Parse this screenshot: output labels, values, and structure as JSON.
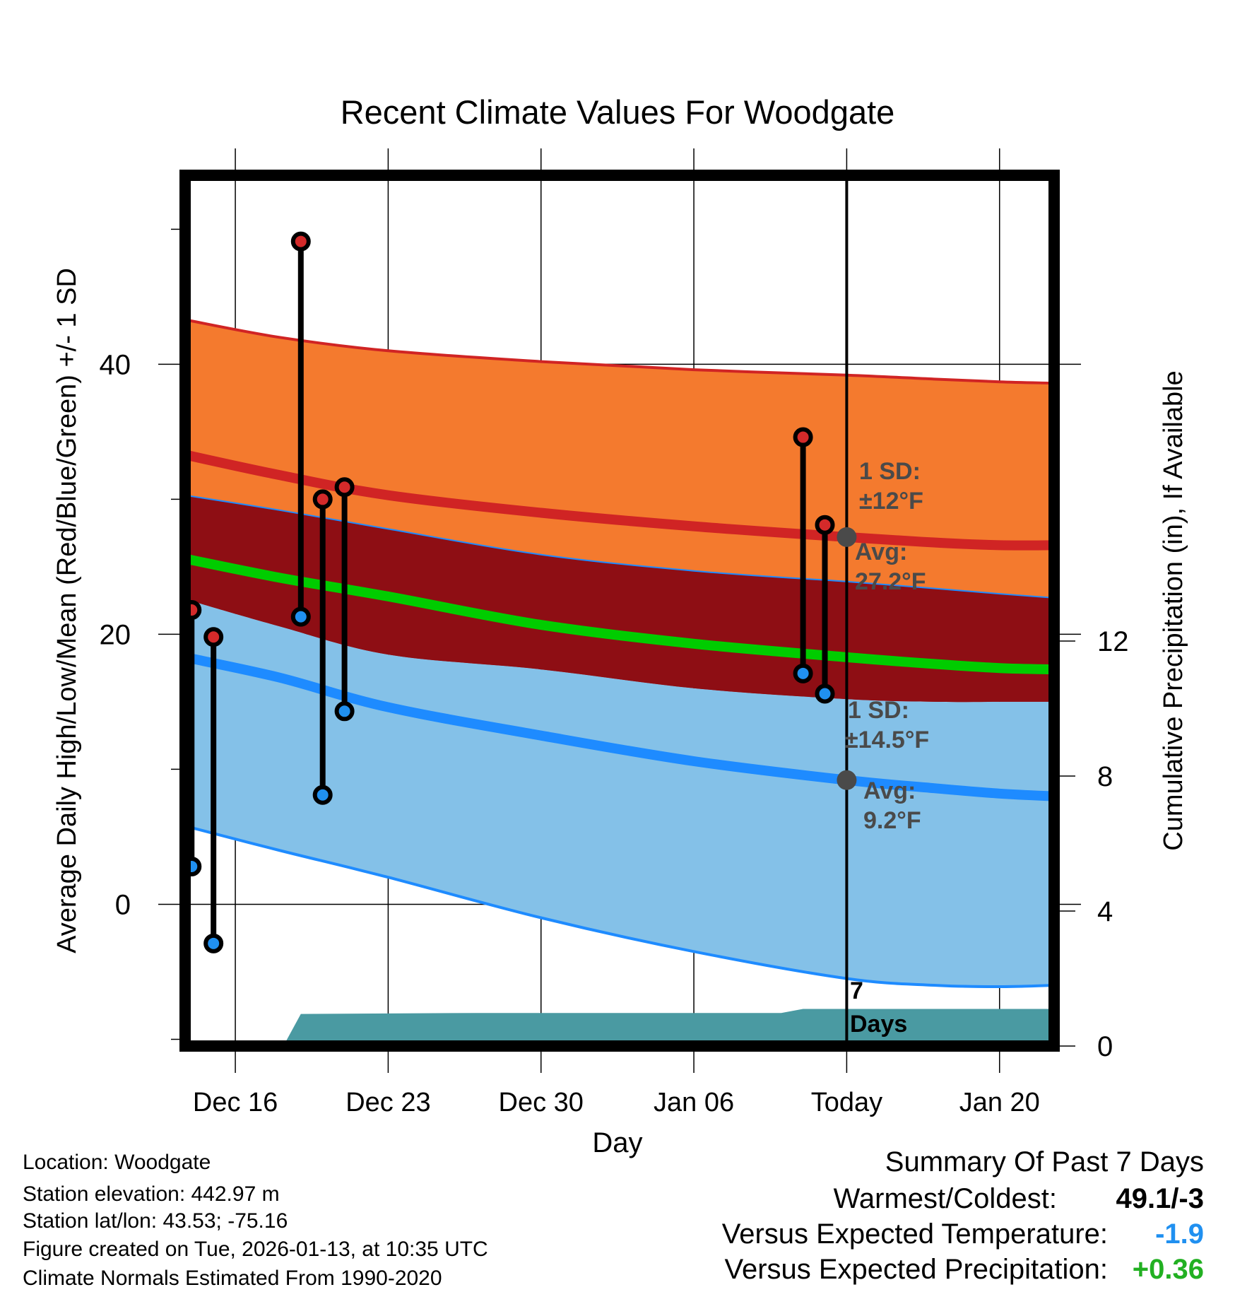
{
  "chart_data": {
    "type": "line",
    "title": "Recent Climate Values For Woodgate",
    "xlabel": "Day",
    "ylabel_left": "Average Daily High/Low/Mean (Red/Blue/Green) +/- 1 SD",
    "ylabel_right": "Cumulative Precipitation (in), If Available",
    "x_range_days": [
      -30.3,
      9.5
    ],
    "ylim_left": [
      -10.5,
      54
    ],
    "ylim_right": [
      0,
      25.8
    ],
    "x_ticks": [
      {
        "day": -28,
        "label": "Dec 16"
      },
      {
        "day": -21,
        "label": "Dec 23"
      },
      {
        "day": -14,
        "label": "Dec 30"
      },
      {
        "day": -7,
        "label": "Jan 06"
      },
      {
        "day": 0,
        "label": "Today"
      },
      {
        "day": 7,
        "label": "Jan 20"
      }
    ],
    "y_ticks_left": [
      {
        "value": 0,
        "label": "0"
      },
      {
        "value": 20,
        "label": "20"
      },
      {
        "value": 40,
        "label": "40"
      }
    ],
    "y_minor_left": [
      -10,
      10,
      30,
      50
    ],
    "y_ticks_right": [
      {
        "value": 0,
        "label": "0"
      },
      {
        "value": 4,
        "label": "4"
      },
      {
        "value": 8,
        "label": "8"
      },
      {
        "value": 12,
        "label": "12"
      }
    ],
    "normals": {
      "days": [
        -30.3,
        -26,
        -21,
        -14,
        -7,
        0,
        4,
        7,
        9.5
      ],
      "high_mean": [
        33.3,
        31.8,
        30.3,
        29.0,
        28.0,
        27.2,
        26.8,
        26.6,
        26.6
      ],
      "high_upper": [
        43.3,
        42.0,
        41.0,
        40.2,
        39.6,
        39.2,
        38.9,
        38.7,
        38.6
      ],
      "high_lower": [
        30.3,
        29.2,
        27.8,
        25.9,
        24.7,
        23.9,
        23.4,
        23.0,
        22.7
      ],
      "mean": [
        25.6,
        24.2,
        22.8,
        20.7,
        19.3,
        18.3,
        17.8,
        17.5,
        17.4
      ],
      "low_mean": [
        18.3,
        16.8,
        14.6,
        12.5,
        10.6,
        9.2,
        8.6,
        8.2,
        8.0
      ],
      "low_upper": [
        22.6,
        20.6,
        18.5,
        17.4,
        16.0,
        15.2,
        15.0,
        15.0,
        15.0
      ],
      "low_lower": [
        5.8,
        4.0,
        2.0,
        -1.0,
        -3.5,
        -5.5,
        -6.0,
        -6.1,
        -6.0
      ]
    },
    "observations": [
      {
        "day": -30,
        "high": 21.8,
        "low": 2.8
      },
      {
        "day": -29,
        "high": 19.8,
        "low": -2.9
      },
      {
        "day": -25,
        "high": 49.1,
        "low": 21.3
      },
      {
        "day": -24,
        "high": 30.0,
        "low": 8.1
      },
      {
        "day": -23,
        "high": 30.9,
        "low": 14.3
      },
      {
        "day": -2,
        "high": 34.6,
        "low": 17.1
      },
      {
        "day": -1,
        "high": 28.1,
        "low": 15.6
      }
    ],
    "precipitation": {
      "days": [
        -25.8,
        -25.0,
        -17.0,
        -3.0,
        -2.0,
        0,
        9.5
      ],
      "cumulative_in": [
        0,
        0.95,
        0.98,
        0.98,
        1.1,
        1.1,
        1.1
      ]
    },
    "annotations": {
      "high_sd": {
        "line1": "1 SD:",
        "line2": "±12°F"
      },
      "high_avg": {
        "line1": "Avg:",
        "line2": "27.2°F",
        "value": 27.2
      },
      "low_sd": {
        "line1": "1 SD:",
        "line2": "±14.5°F"
      },
      "low_avg": {
        "line1": "Avg:",
        "line2": "9.2°F",
        "value": 9.2
      },
      "days_marker": {
        "line1": "7",
        "line2": "Days"
      }
    },
    "colors": {
      "high_band": "#F47A2E",
      "high_line": "#D02424",
      "overlap_band": "#8E0E14",
      "low_band": "#84C1E8",
      "low_line": "#1E8BFF",
      "mean_line": "#00CC00",
      "precip": "#4A9AA2",
      "high_dot": "#D42A2A",
      "low_dot": "#2090F0",
      "annotation": "#4A4A4A"
    }
  },
  "info": {
    "location": "Location: Woodgate",
    "elevation": "Station elevation: 442.97 m",
    "latlon": "Station lat/lon: 43.53; -75.16",
    "created": "Figure created on Tue, 2026-01-13, at 10:35 UTC",
    "normals": "Climate Normals Estimated From 1990-2020"
  },
  "summary": {
    "title": "Summary Of Past 7 Days",
    "warmest_label": "Warmest/Coldest:",
    "warmest_value": "49.1/-3",
    "temp_label": "Versus Expected Temperature:",
    "temp_value": "-1.9",
    "temp_color": "#2090F0",
    "precip_label": "Versus Expected Precipitation:",
    "precip_value": "+0.36",
    "precip_color": "#22B022"
  }
}
